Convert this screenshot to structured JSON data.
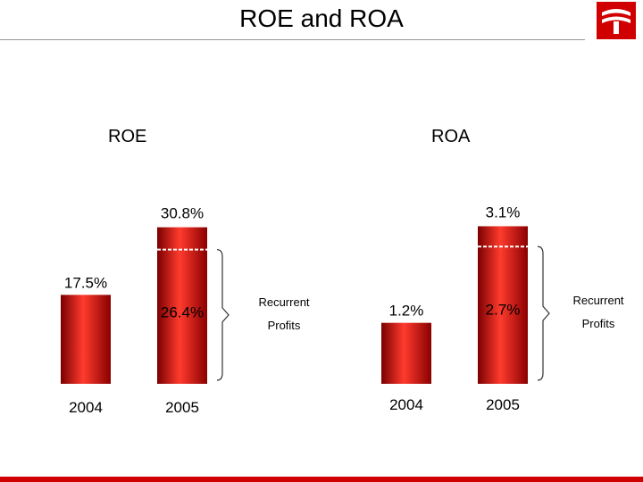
{
  "title": "ROE and ROA",
  "colors": {
    "bar": "#c80000",
    "bar_light": "#ff4a3a",
    "bar_dark": "#7a0000",
    "accent": "#d10000",
    "rule": "#999999"
  },
  "icons": {
    "logo": "bank-logo-icon"
  },
  "chart_data": [
    {
      "type": "bar",
      "title": "ROE",
      "categories": [
        "2004",
        "2005"
      ],
      "values": [
        17.5,
        30.8
      ],
      "value_labels": [
        "17.5%",
        "30.8%"
      ],
      "recurrent": {
        "value": 26.4,
        "label": "26.4%",
        "bracket_text": [
          "Recurrent",
          "Profits"
        ]
      },
      "ylim": [
        0,
        36
      ]
    },
    {
      "type": "bar",
      "title": "ROA",
      "categories": [
        "2004",
        "2005"
      ],
      "values": [
        1.2,
        3.1
      ],
      "value_labels": [
        "1.2%",
        "3.1%"
      ],
      "recurrent": {
        "value": 2.7,
        "label": "2.7%",
        "bracket_text": [
          "Recurrent",
          "Profits"
        ]
      },
      "ylim": [
        0,
        3.6
      ]
    }
  ]
}
